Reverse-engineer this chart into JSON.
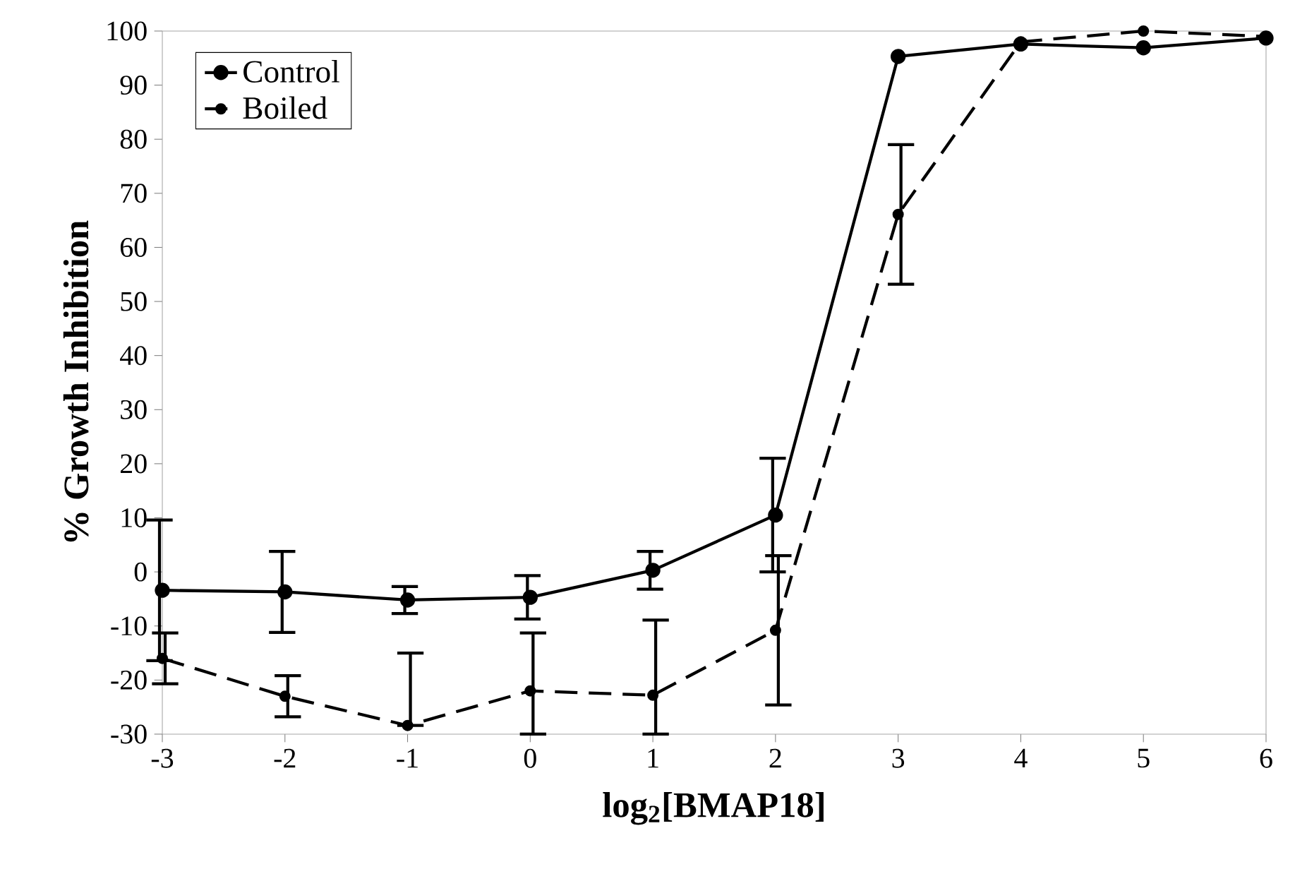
{
  "chart_data": {
    "type": "line",
    "xlabel": "log$_{2}$[BMAP18]",
    "ylabel": "% Growth Inhibition",
    "x": [
      -3,
      -2,
      -1,
      0,
      1,
      2,
      3,
      4,
      5,
      6
    ],
    "series": [
      {
        "name": "Control",
        "color": "#000000",
        "line_style": "solid",
        "values": [
          -3.4,
          -3.7,
          -5.2,
          -4.7,
          0.3,
          10.5,
          95.3,
          97.6,
          96.9,
          98.7
        ],
        "errors": [
          13,
          7.5,
          2.5,
          4,
          3.5,
          10.5,
          null,
          null,
          null,
          null
        ]
      },
      {
        "name": "Boiled",
        "color": "#000000",
        "line_style": "dashed",
        "values": [
          -16,
          -23,
          -28.4,
          -22,
          -22.8,
          -10.8,
          66.1,
          98,
          100,
          99
        ],
        "errors": [
          4.7,
          3.8,
          [
            -28.4,
            -15
          ],
          [
            -30,
            -11.3
          ],
          [
            -30,
            -8.9
          ],
          13.8,
          12.9,
          null,
          null,
          null
        ]
      }
    ],
    "xlim": [
      -3,
      6
    ],
    "ylim": [
      -30,
      100
    ],
    "xticks": [
      -3,
      -2,
      -1,
      0,
      1,
      2,
      3,
      4,
      5,
      6
    ],
    "yticks": [
      -30,
      -20,
      -10,
      0,
      10,
      20,
      30,
      40,
      50,
      60,
      70,
      80,
      90,
      100
    ],
    "grid": false,
    "legend": "top left",
    "marker": "circle"
  }
}
